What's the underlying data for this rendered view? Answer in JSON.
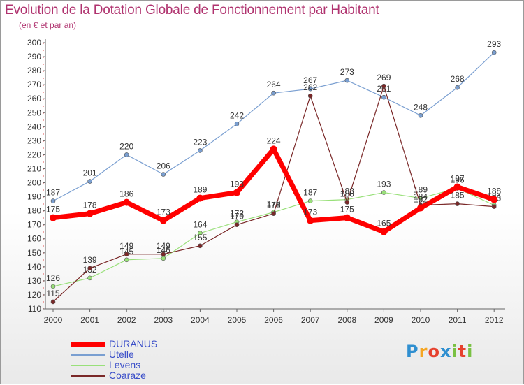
{
  "title": "Evolution de la Dotation Globale de Fonctionnement par Habitant",
  "subtitle": "(en € et par an)",
  "chart_data": {
    "type": "line",
    "x": [
      "2000",
      "2001",
      "2002",
      "2003",
      "2004",
      "2005",
      "2006",
      "2007",
      "2008",
      "2009",
      "2010",
      "2011",
      "2012"
    ],
    "ylim": [
      110,
      300
    ],
    "yticks": [
      110,
      120,
      130,
      140,
      150,
      160,
      170,
      180,
      190,
      200,
      210,
      220,
      230,
      240,
      250,
      260,
      270,
      280,
      290,
      300
    ],
    "grid": false,
    "legend_position": "bottom-left",
    "series": [
      {
        "name": "DURANUS",
        "color": "#ff0000",
        "values": [
          175,
          178,
          186,
          173,
          189,
          193,
          224,
          173,
          175,
          165,
          182,
          197,
          188
        ]
      },
      {
        "name": "Utelle",
        "color": "#7a9fd1",
        "values": [
          187,
          201,
          220,
          206,
          223,
          242,
          264,
          267,
          273,
          261,
          248,
          268,
          293
        ]
      },
      {
        "name": "Levens",
        "color": "#99e07a",
        "values": [
          126,
          132,
          145,
          146,
          164,
          172,
          179,
          187,
          188,
          193,
          189,
          196,
          184
        ]
      },
      {
        "name": "Coaraze",
        "color": "#7a2828",
        "values": [
          115,
          139,
          149,
          149,
          155,
          170,
          178,
          262,
          186,
          269,
          184,
          185,
          183
        ]
      }
    ]
  },
  "logo_text": "Proxiti",
  "logo_colors": [
    "#2f8fd0",
    "#f5a623",
    "#e6412e",
    "#2f8fd0",
    "#7ac143",
    "#e6412e",
    "#7ac143"
  ]
}
